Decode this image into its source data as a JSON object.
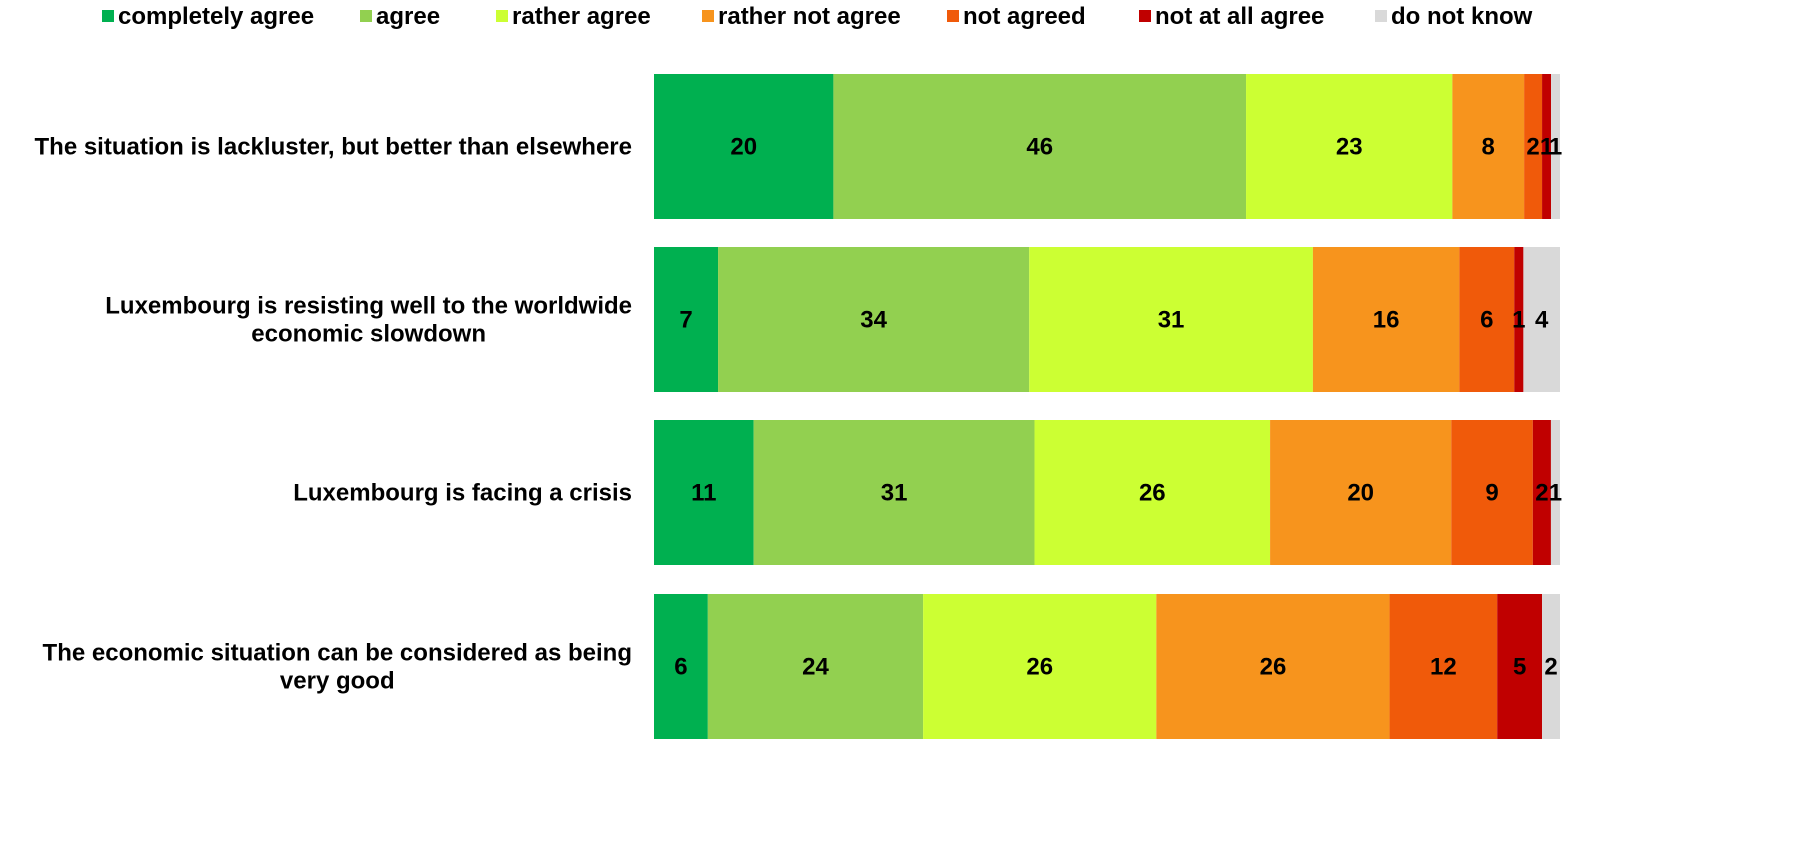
{
  "chart_data": {
    "type": "bar",
    "orientation": "horizontal",
    "stacked": true,
    "legend_position": "top",
    "grid": false,
    "categories": [
      "The situation is lackluster, but better than elsewhere",
      "Luxembourg is resisting well to the worldwide economic slowdown",
      "Luxembourg is facing a crisis",
      "The economic situation can be considered as being very good"
    ],
    "series": [
      {
        "name": "completely agree",
        "color": "#00B050",
        "values": [
          20,
          7,
          11,
          6
        ]
      },
      {
        "name": "agree",
        "color": "#92D050",
        "values": [
          46,
          34,
          31,
          24
        ]
      },
      {
        "name": "rather agree",
        "color": "#CCFF33",
        "values": [
          23,
          31,
          26,
          26
        ]
      },
      {
        "name": "rather not agree",
        "color": "#F7941D",
        "values": [
          8,
          16,
          20,
          26
        ]
      },
      {
        "name": "not agreed",
        "color": "#F05A0A",
        "values": [
          2,
          6,
          9,
          12
        ]
      },
      {
        "name": "not at all agree",
        "color": "#C00000",
        "values": [
          1,
          1,
          2,
          5
        ]
      },
      {
        "name": "do not know",
        "color": "#D9D9D9",
        "values": [
          1,
          4,
          1,
          2
        ]
      }
    ]
  }
}
